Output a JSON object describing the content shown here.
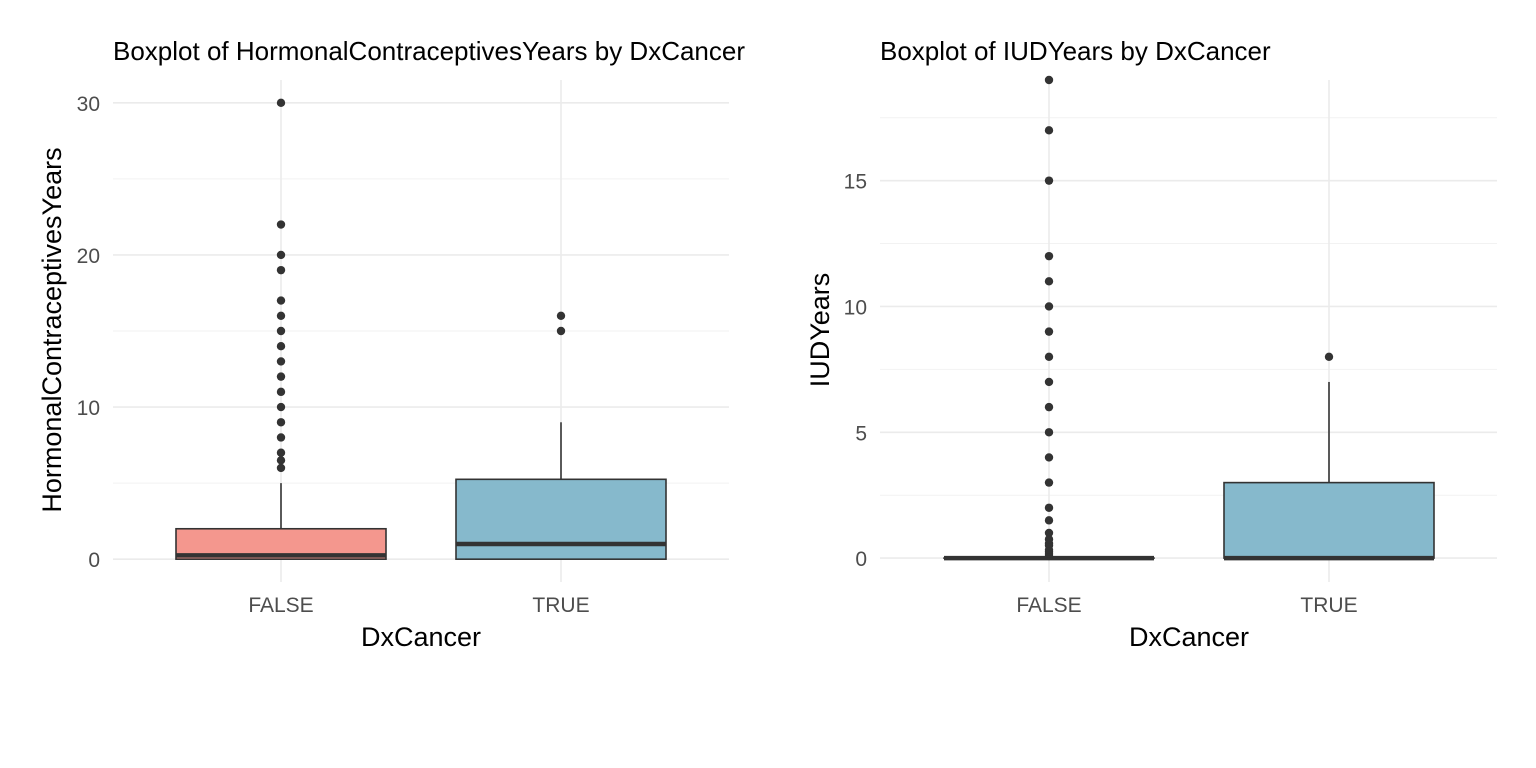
{
  "chart_data": [
    {
      "type": "boxplot",
      "title": "Boxplot of HormonalContraceptivesYears by DxCancer",
      "xlabel": "DxCancer",
      "ylabel": "HormonalContraceptivesYears",
      "ylim": [
        -1.5,
        31.5
      ],
      "yticks": [
        0,
        10,
        20,
        30
      ],
      "yticks_minor": [
        5,
        15,
        25
      ],
      "grid": true,
      "legend": "none",
      "categories": [
        "FALSE",
        "TRUE"
      ],
      "boxes": [
        {
          "category": "FALSE",
          "color": "#f4978e",
          "lower_whisker": 0,
          "q1": 0,
          "median": 0.25,
          "q3": 2,
          "upper_whisker": 5,
          "outliers": [
            6,
            6.5,
            7,
            8,
            9,
            10,
            11,
            12,
            13,
            14,
            15,
            16,
            17,
            19,
            20,
            22,
            30
          ]
        },
        {
          "category": "TRUE",
          "color": "#86b9cc",
          "lower_whisker": 0,
          "q1": 0,
          "median": 1,
          "q3": 5.25,
          "upper_whisker": 9,
          "outliers": [
            15,
            16
          ]
        }
      ]
    },
    {
      "type": "boxplot",
      "title": "Boxplot of IUDYears by DxCancer",
      "xlabel": "DxCancer",
      "ylabel": "IUDYears",
      "ylim": [
        -0.95,
        19.0
      ],
      "yticks": [
        0,
        5,
        10,
        15
      ],
      "yticks_minor": [
        2.5,
        7.5,
        12.5,
        17.5
      ],
      "grid": true,
      "legend": "none",
      "categories": [
        "FALSE",
        "TRUE"
      ],
      "boxes": [
        {
          "category": "FALSE",
          "color": "#f4978e",
          "lower_whisker": 0,
          "q1": 0,
          "median": 0,
          "q3": 0,
          "upper_whisker": 0,
          "outliers": [
            0.08,
            0.17,
            0.25,
            0.33,
            0.5,
            0.58,
            0.75,
            1,
            1.5,
            2,
            3,
            4,
            5,
            6,
            7,
            8,
            9,
            10,
            11,
            12,
            15,
            17,
            19
          ]
        },
        {
          "category": "TRUE",
          "color": "#86b9cc",
          "lower_whisker": 0,
          "q1": 0,
          "median": 0,
          "q3": 3,
          "upper_whisker": 7,
          "outliers": [
            8
          ]
        }
      ]
    }
  ]
}
